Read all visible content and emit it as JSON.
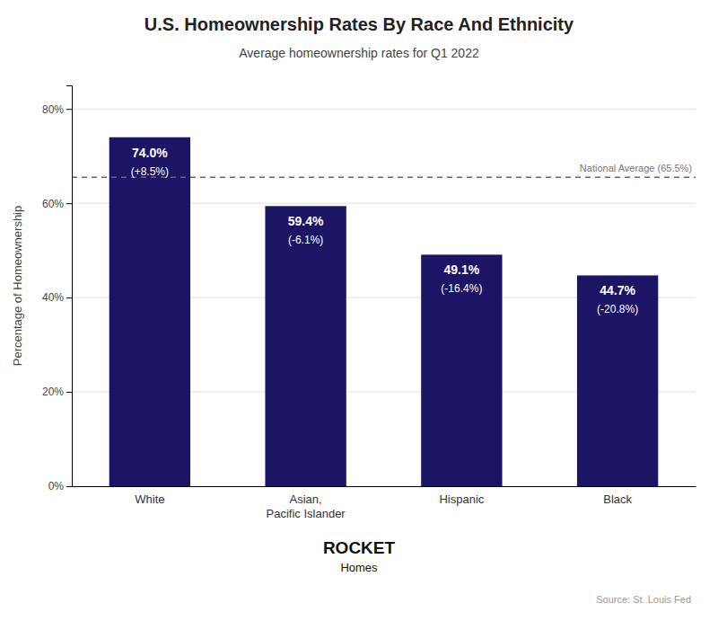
{
  "chart_data": {
    "type": "bar",
    "title": "U.S. Homeownership Rates By Race And Ethnicity",
    "subtitle": "Average homeownership rates for Q1 2022",
    "categories": [
      "White",
      "Asian,\nPacific Islander",
      "Hispanic",
      "Black"
    ],
    "values": [
      74.0,
      59.4,
      49.1,
      44.7
    ],
    "value_labels": [
      "74.0%",
      "59.4%",
      "49.1%",
      "44.7%"
    ],
    "differences": [
      8.5,
      -6.1,
      -16.4,
      -20.8
    ],
    "difference_labels": [
      "(+8.5%)",
      "(-6.1%)",
      "(-16.4%)",
      "(-20.8%)"
    ],
    "color": "#1c1464",
    "reference_line": {
      "value": 65.5,
      "label": "National Average (65.5%)"
    },
    "ylabel": "Percentage of Homeownership",
    "ylim": [
      0,
      85
    ],
    "yticks": [
      {
        "value": 0,
        "label": "0%"
      },
      {
        "value": 20,
        "label": "20%"
      },
      {
        "value": 40,
        "label": "40%"
      },
      {
        "value": 60,
        "label": "60%"
      },
      {
        "value": 80,
        "label": "80%"
      }
    ],
    "grid": true,
    "data_labels": true,
    "annotations": [
      "ROCKET",
      "Homes",
      "Source: St. Louis Fed"
    ]
  }
}
